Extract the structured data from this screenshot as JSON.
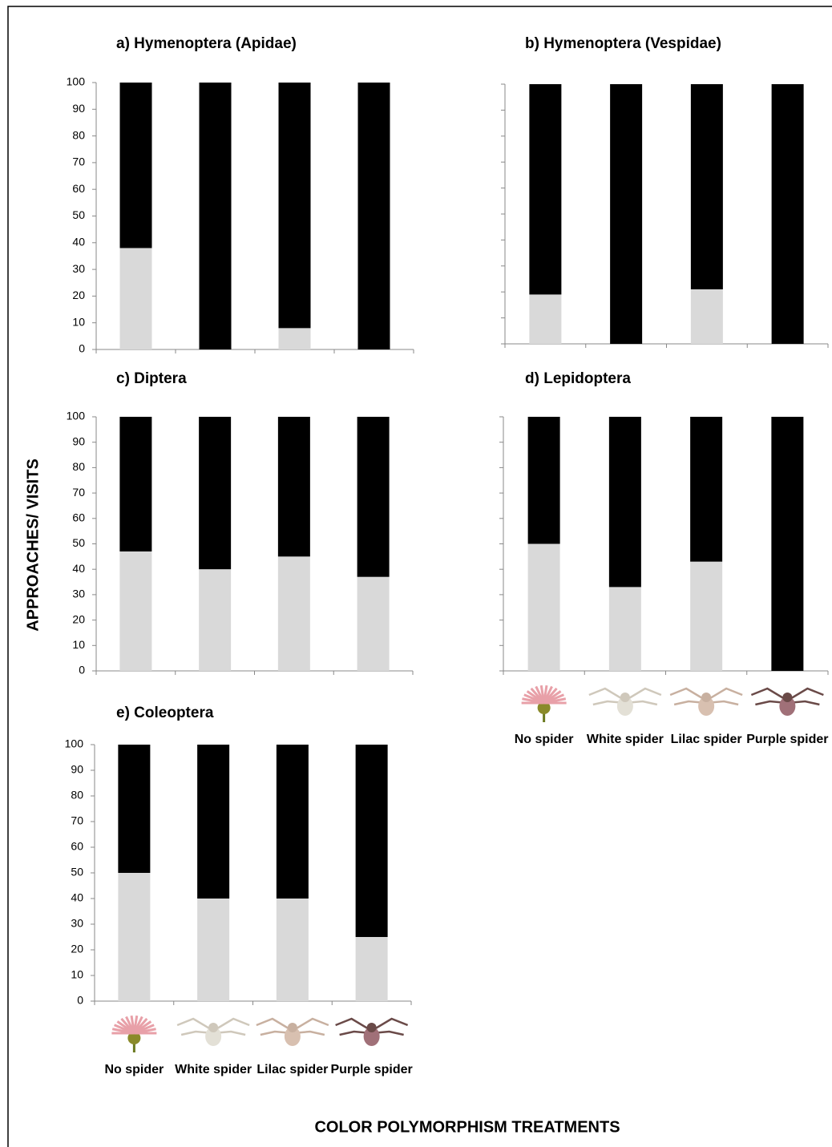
{
  "ylabel": "APPROACHES/ VISITS",
  "xlabel": "COLOR POLYMORPHISM TREATMENTS",
  "chart_data": [
    {
      "type": "bar",
      "stacked": true,
      "title": "a) Hymenoptera (Apidae)",
      "categories": [
        null,
        null,
        null,
        null
      ],
      "series": [
        {
          "color": "#d9d9d9",
          "values": [
            38,
            0,
            8,
            0
          ]
        },
        {
          "color": "#000000",
          "values": [
            62,
            100,
            92,
            100
          ]
        }
      ],
      "ylim": [
        0,
        100
      ],
      "yticks": [
        0,
        10,
        20,
        30,
        40,
        50,
        60,
        70,
        80,
        90,
        100
      ],
      "show_ytick_labels": true
    },
    {
      "type": "bar",
      "stacked": true,
      "title": "b) Hymenoptera (Vespidae)",
      "categories": [
        null,
        null,
        null,
        null
      ],
      "series": [
        {
          "color": "#d9d9d9",
          "values": [
            19,
            0,
            21,
            0
          ]
        },
        {
          "color": "#000000",
          "values": [
            81,
            100,
            79,
            100
          ]
        }
      ],
      "ylim": [
        0,
        100
      ],
      "yticks": [
        0,
        10,
        20,
        30,
        40,
        50,
        60,
        70,
        80,
        90,
        100
      ],
      "show_ytick_labels": false
    },
    {
      "type": "bar",
      "stacked": true,
      "title": "c) Diptera",
      "categories": [
        null,
        null,
        null,
        null
      ],
      "series": [
        {
          "color": "#d9d9d9",
          "values": [
            47,
            40,
            45,
            37
          ]
        },
        {
          "color": "#000000",
          "values": [
            53,
            60,
            55,
            63
          ]
        }
      ],
      "ylim": [
        0,
        100
      ],
      "yticks": [
        0,
        10,
        20,
        30,
        40,
        50,
        60,
        70,
        80,
        90,
        100
      ],
      "show_ytick_labels": true
    },
    {
      "type": "bar",
      "stacked": true,
      "title": "d) Lepidoptera",
      "categories": [
        "No spider",
        "White spider",
        "Lilac spider",
        "Purple spider"
      ],
      "series": [
        {
          "color": "#d9d9d9",
          "values": [
            50,
            33,
            43,
            0
          ]
        },
        {
          "color": "#000000",
          "values": [
            50,
            67,
            57,
            100
          ]
        }
      ],
      "ylim": [
        0,
        100
      ],
      "yticks": [
        0,
        10,
        20,
        30,
        40,
        50,
        60,
        70,
        80,
        90,
        100
      ],
      "show_ytick_labels": false
    },
    {
      "type": "bar",
      "stacked": true,
      "title": "e) Coleoptera",
      "categories": [
        "No spider",
        "White spider",
        "Lilac spider",
        "Purple spider"
      ],
      "series": [
        {
          "color": "#d9d9d9",
          "values": [
            50,
            40,
            40,
            25
          ]
        },
        {
          "color": "#000000",
          "values": [
            50,
            60,
            60,
            75
          ]
        }
      ],
      "ylim": [
        0,
        100
      ],
      "yticks": [
        0,
        10,
        20,
        30,
        40,
        50,
        60,
        70,
        80,
        90,
        100
      ],
      "show_ytick_labels": true
    }
  ]
}
